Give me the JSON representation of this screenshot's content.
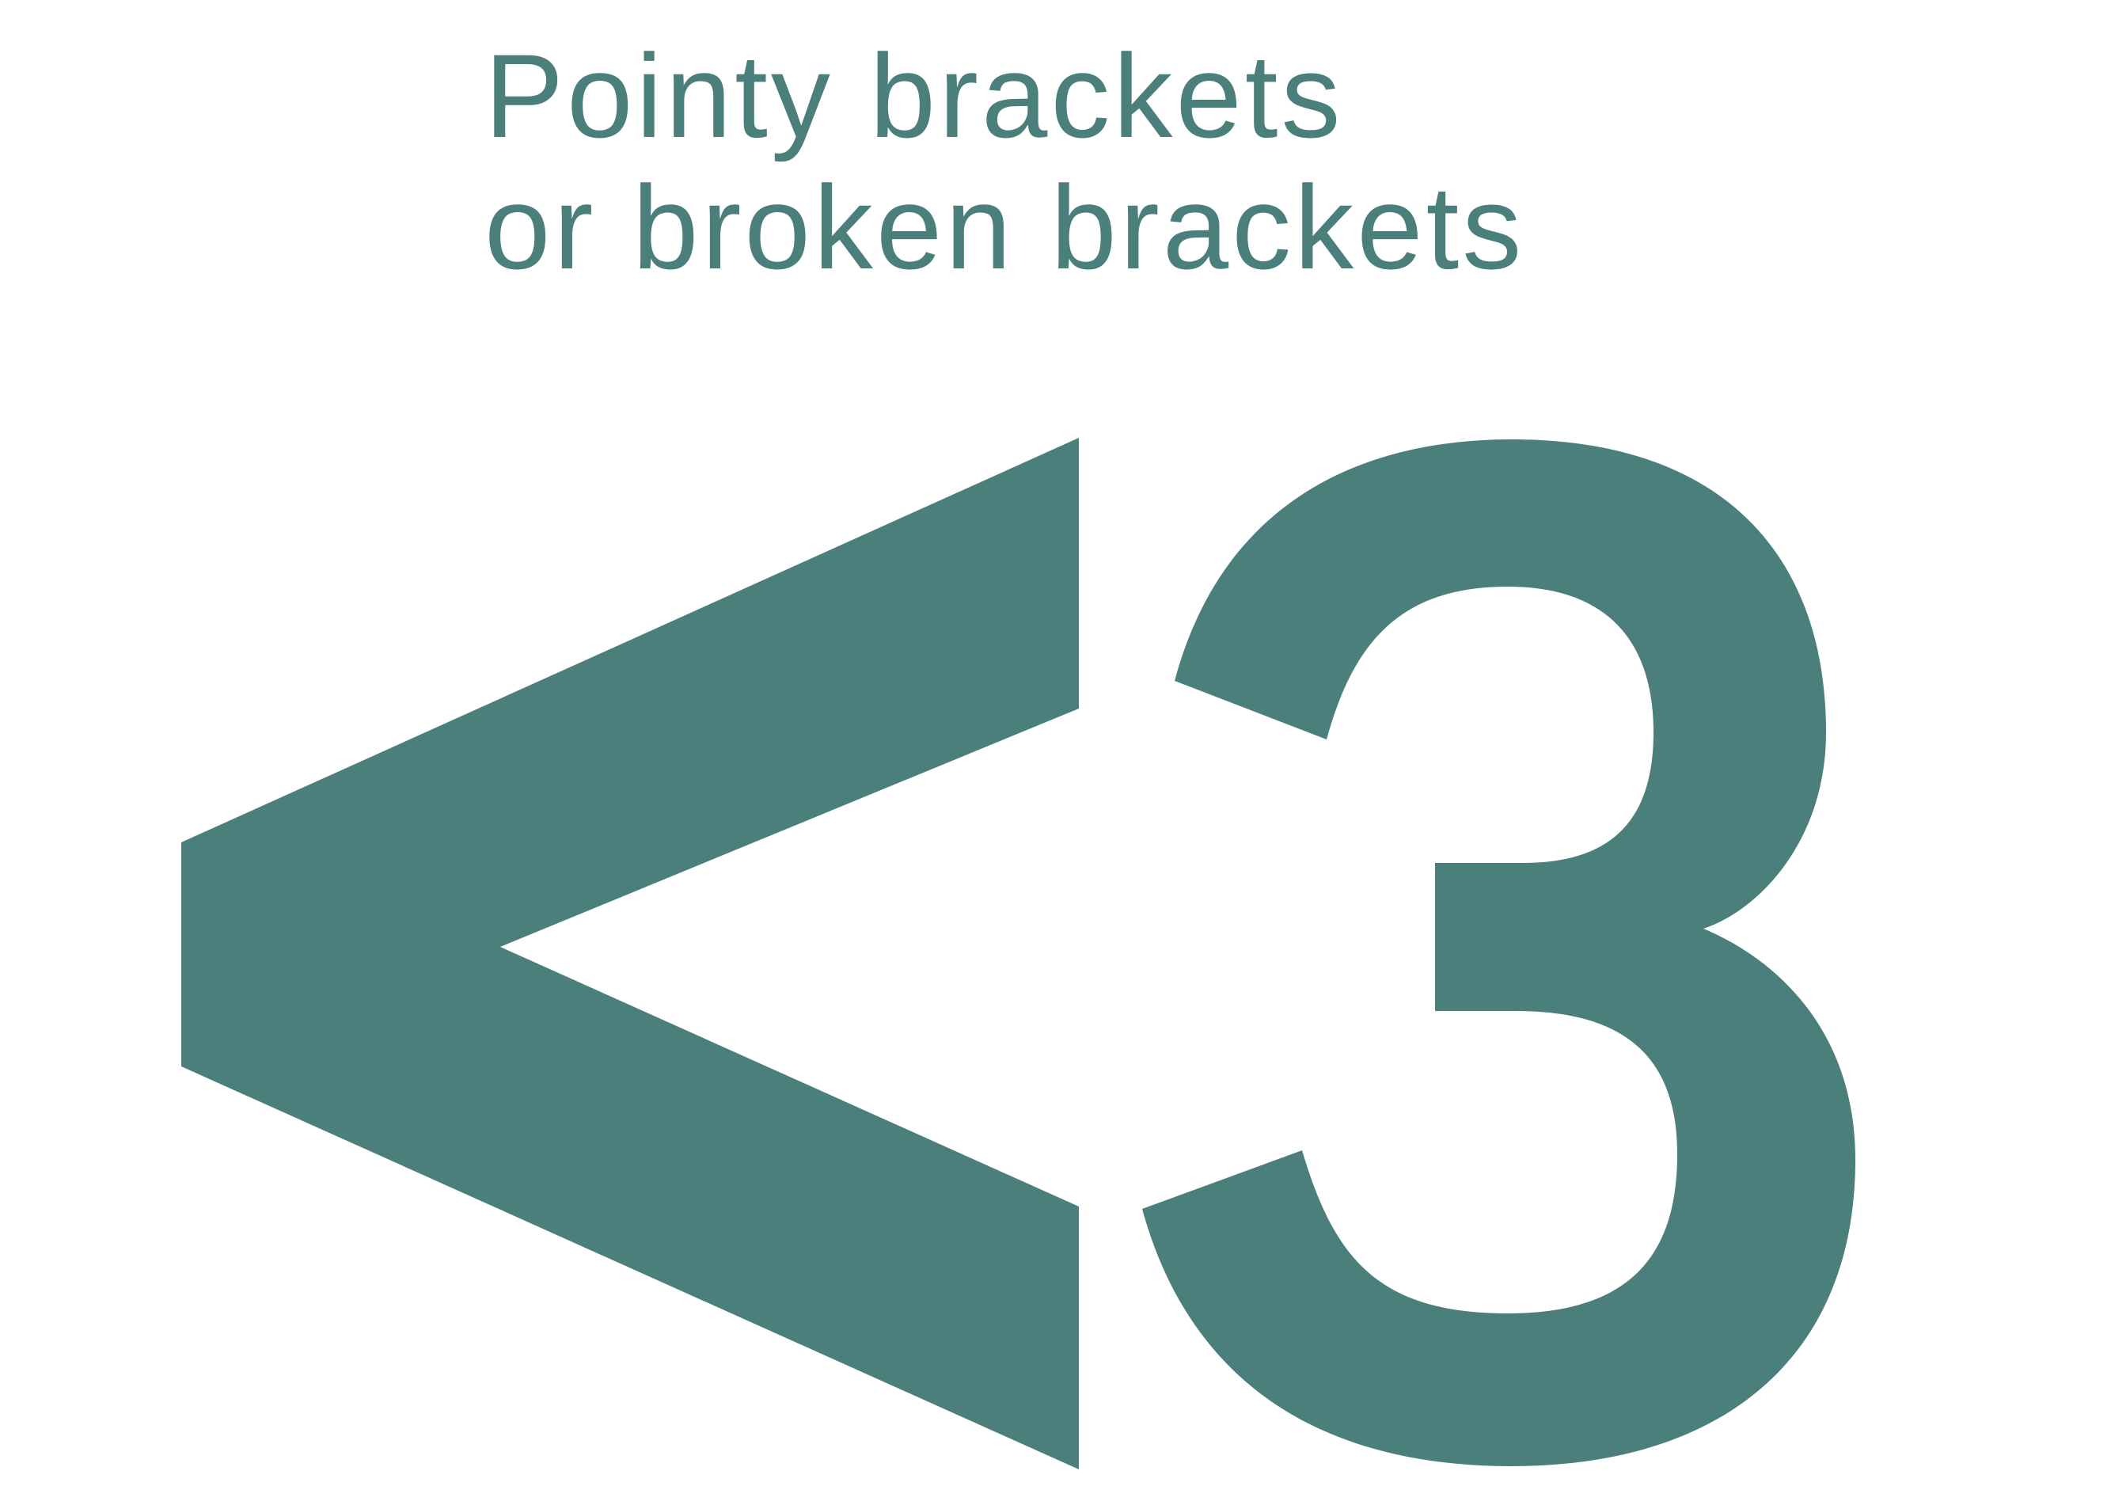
{
  "caption": {
    "line1": "Pointy brackets",
    "line2": "or broken brackets"
  },
  "glyph": {
    "text": "<3",
    "bracket_icon": "less-than-bracket-icon",
    "digit_icon": "digit-three-icon"
  },
  "colors": {
    "accent": "#4a7f7b",
    "background": "#ffffff"
  }
}
